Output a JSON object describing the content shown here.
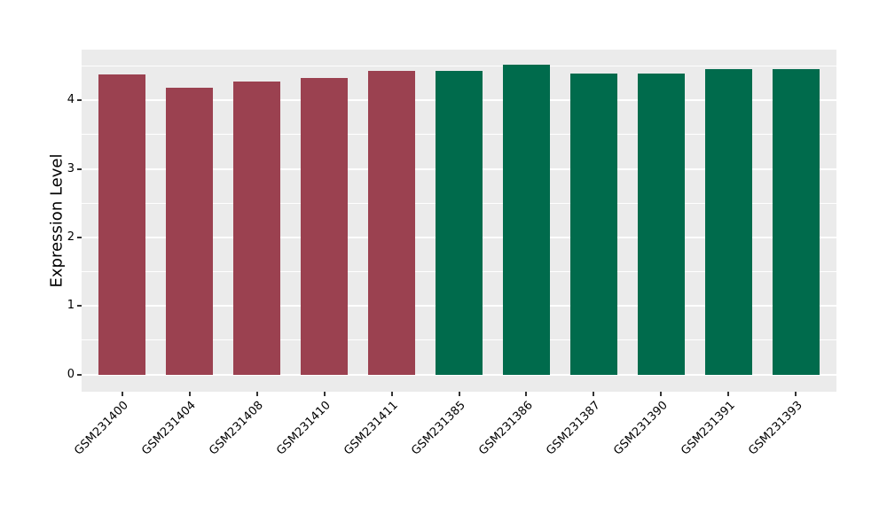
{
  "chart_data": {
    "type": "bar",
    "title": "",
    "xlabel": "",
    "ylabel": "Expression Level",
    "categories": [
      "GSM231400",
      "GSM231404",
      "GSM231408",
      "GSM231410",
      "GSM231411",
      "GSM231385",
      "GSM231386",
      "GSM231387",
      "GSM231390",
      "GSM231391",
      "GSM231393"
    ],
    "values": [
      4.38,
      4.18,
      4.28,
      4.32,
      4.43,
      4.43,
      4.52,
      4.39,
      4.39,
      4.46,
      4.45
    ],
    "bar_colors": [
      "#9B4150",
      "#9B4150",
      "#9B4150",
      "#9B4150",
      "#9B4150",
      "#006B4C",
      "#006B4C",
      "#006B4C",
      "#006B4C",
      "#006B4C",
      "#006B4C"
    ],
    "group_colors": {
      "first_group": "#9B4150",
      "second_group": "#006B4C"
    },
    "ylim": [
      -0.25,
      4.74
    ],
    "x_range": [
      0.4,
      11.6
    ],
    "bar_width": 0.7,
    "yticks": [
      0,
      1,
      2,
      3,
      4
    ],
    "yticks_minor": [
      0.5,
      1.5,
      2.5,
      3.5,
      4.5
    ],
    "grid": true,
    "legend": "none",
    "style": {
      "panel_bg": "#EBEBEB",
      "grid_color": "#FFFFFF",
      "background": "#FFFFFF",
      "axis_text_color": "#000000",
      "tick_color": "#333333"
    }
  }
}
